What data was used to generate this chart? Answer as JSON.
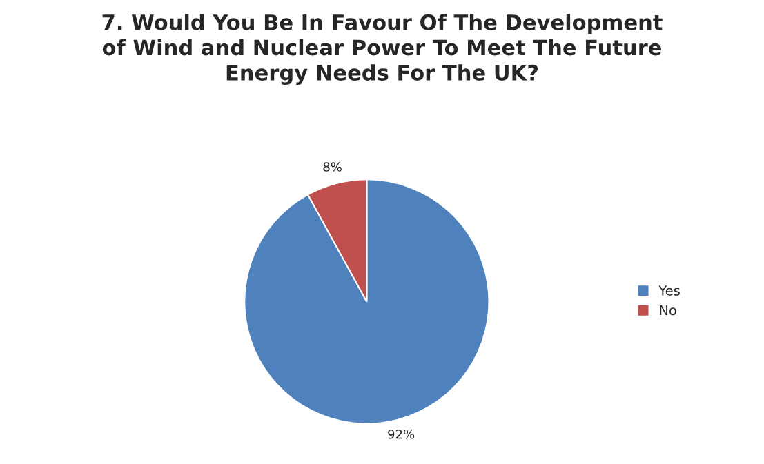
{
  "chart_data": {
    "type": "pie",
    "title": "7. Would You Be In Favour Of The Development\nof Wind and Nuclear Power To Meet The Future\nEnergy Needs For The UK?",
    "categories": [
      "Yes",
      "No"
    ],
    "values": [
      92,
      8
    ],
    "colors": [
      "#4f81bd",
      "#c0504d"
    ],
    "value_labels": [
      "92%",
      "8%"
    ],
    "legend": "right"
  }
}
